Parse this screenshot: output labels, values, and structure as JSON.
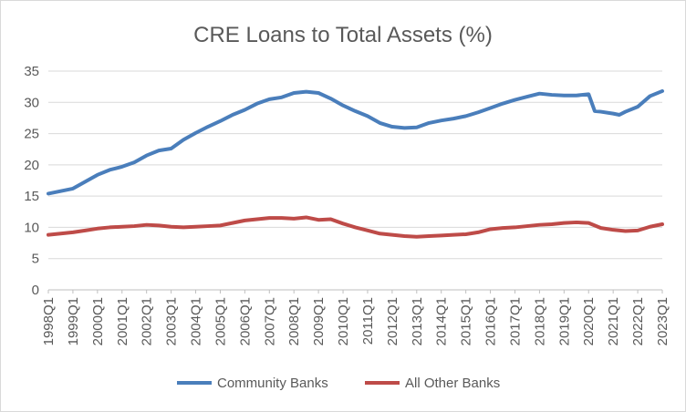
{
  "chart_data": {
    "type": "line",
    "title": "CRE Loans to Total Assets (%)",
    "xlabel": "",
    "ylabel": "",
    "ylim": [
      0,
      35
    ],
    "yticks": [
      0,
      5,
      10,
      15,
      20,
      25,
      30,
      35
    ],
    "x_tick_labels": [
      "1998Q1",
      "1999Q1",
      "2000Q1",
      "2001Q1",
      "2002Q1",
      "2003Q1",
      "2004Q1",
      "2005Q1",
      "2006Q1",
      "2007Q1",
      "2008Q1",
      "2009Q1",
      "2010Q1",
      "2011Q1",
      "2012Q1",
      "2013Q1",
      "2014Q1",
      "2015Q1",
      "2016Q1",
      "2017Q1",
      "2018Q1",
      "2019Q1",
      "2020Q1",
      "2021Q1",
      "2022Q1",
      "2023Q1"
    ],
    "grid": "horizontal",
    "legend": "bottom",
    "series": [
      {
        "name": "Community Banks",
        "color": "#4a7ebb",
        "points": [
          [
            "1998Q1",
            15.4
          ],
          [
            "1998Q3",
            15.8
          ],
          [
            "1999Q1",
            16.2
          ],
          [
            "1999Q3",
            17.3
          ],
          [
            "2000Q1",
            18.4
          ],
          [
            "2000Q3",
            19.2
          ],
          [
            "2001Q1",
            19.7
          ],
          [
            "2001Q3",
            20.4
          ],
          [
            "2002Q1",
            21.5
          ],
          [
            "2002Q3",
            22.3
          ],
          [
            "2003Q1",
            22.6
          ],
          [
            "2003Q3",
            24.0
          ],
          [
            "2004Q1",
            25.1
          ],
          [
            "2004Q3",
            26.1
          ],
          [
            "2005Q1",
            27.0
          ],
          [
            "2005Q3",
            28.0
          ],
          [
            "2006Q1",
            28.8
          ],
          [
            "2006Q3",
            29.8
          ],
          [
            "2007Q1",
            30.5
          ],
          [
            "2007Q3",
            30.8
          ],
          [
            "2008Q1",
            31.5
          ],
          [
            "2008Q3",
            31.7
          ],
          [
            "2009Q1",
            31.5
          ],
          [
            "2009Q3",
            30.6
          ],
          [
            "2010Q1",
            29.5
          ],
          [
            "2010Q3",
            28.6
          ],
          [
            "2011Q1",
            27.8
          ],
          [
            "2011Q3",
            26.7
          ],
          [
            "2012Q1",
            26.1
          ],
          [
            "2012Q3",
            25.9
          ],
          [
            "2013Q1",
            26.0
          ],
          [
            "2013Q3",
            26.7
          ],
          [
            "2014Q1",
            27.1
          ],
          [
            "2014Q3",
            27.4
          ],
          [
            "2015Q1",
            27.8
          ],
          [
            "2015Q3",
            28.4
          ],
          [
            "2016Q1",
            29.1
          ],
          [
            "2016Q3",
            29.8
          ],
          [
            "2017Q1",
            30.4
          ],
          [
            "2017Q3",
            30.9
          ],
          [
            "2018Q1",
            31.4
          ],
          [
            "2018Q3",
            31.2
          ],
          [
            "2019Q1",
            31.1
          ],
          [
            "2019Q3",
            31.1
          ],
          [
            "2020Q1",
            31.3
          ],
          [
            "2020Q2",
            28.6
          ],
          [
            "2020Q3",
            28.5
          ],
          [
            "2021Q1",
            28.2
          ],
          [
            "2021Q2",
            28.0
          ],
          [
            "2021Q3",
            28.5
          ],
          [
            "2022Q1",
            29.3
          ],
          [
            "2022Q3",
            31.0
          ],
          [
            "2023Q1",
            31.8
          ]
        ]
      },
      {
        "name": "All Other Banks",
        "color": "#be4b48",
        "points": [
          [
            "1998Q1",
            8.8
          ],
          [
            "1998Q3",
            9.0
          ],
          [
            "1999Q1",
            9.2
          ],
          [
            "1999Q3",
            9.5
          ],
          [
            "2000Q1",
            9.8
          ],
          [
            "2000Q3",
            10.0
          ],
          [
            "2001Q1",
            10.1
          ],
          [
            "2001Q3",
            10.2
          ],
          [
            "2002Q1",
            10.4
          ],
          [
            "2002Q3",
            10.3
          ],
          [
            "2003Q1",
            10.1
          ],
          [
            "2003Q3",
            10.0
          ],
          [
            "2004Q1",
            10.1
          ],
          [
            "2004Q3",
            10.2
          ],
          [
            "2005Q1",
            10.3
          ],
          [
            "2005Q3",
            10.7
          ],
          [
            "2006Q1",
            11.1
          ],
          [
            "2006Q3",
            11.3
          ],
          [
            "2007Q1",
            11.5
          ],
          [
            "2007Q3",
            11.5
          ],
          [
            "2008Q1",
            11.4
          ],
          [
            "2008Q3",
            11.6
          ],
          [
            "2009Q1",
            11.2
          ],
          [
            "2009Q3",
            11.3
          ],
          [
            "2010Q1",
            10.6
          ],
          [
            "2010Q3",
            10.0
          ],
          [
            "2011Q1",
            9.5
          ],
          [
            "2011Q3",
            9.0
          ],
          [
            "2012Q1",
            8.8
          ],
          [
            "2012Q3",
            8.6
          ],
          [
            "2013Q1",
            8.5
          ],
          [
            "2013Q3",
            8.6
          ],
          [
            "2014Q1",
            8.7
          ],
          [
            "2014Q3",
            8.8
          ],
          [
            "2015Q1",
            8.9
          ],
          [
            "2015Q3",
            9.2
          ],
          [
            "2016Q1",
            9.7
          ],
          [
            "2016Q3",
            9.9
          ],
          [
            "2017Q1",
            10.0
          ],
          [
            "2017Q3",
            10.2
          ],
          [
            "2018Q1",
            10.4
          ],
          [
            "2018Q3",
            10.5
          ],
          [
            "2019Q1",
            10.7
          ],
          [
            "2019Q3",
            10.8
          ],
          [
            "2020Q1",
            10.7
          ],
          [
            "2020Q3",
            9.9
          ],
          [
            "2021Q1",
            9.6
          ],
          [
            "2021Q3",
            9.4
          ],
          [
            "2022Q1",
            9.5
          ],
          [
            "2022Q3",
            10.1
          ],
          [
            "2023Q1",
            10.5
          ]
        ]
      }
    ]
  }
}
